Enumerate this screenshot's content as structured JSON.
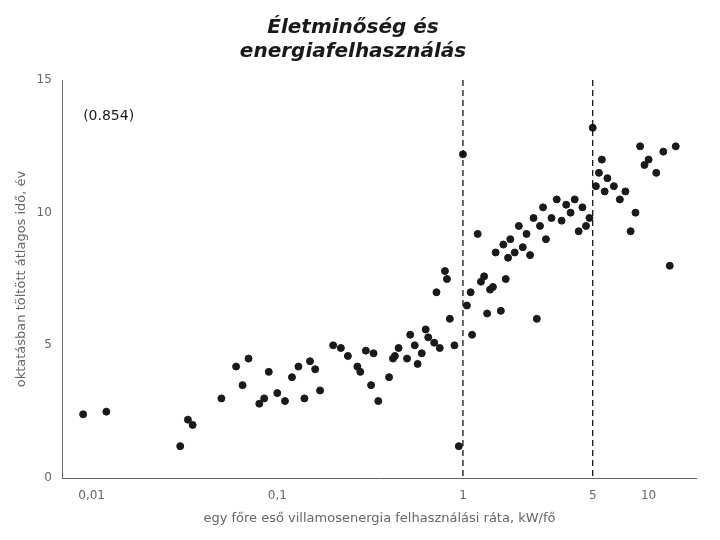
{
  "chart_data": {
    "type": "scatter",
    "title": [
      "Életminőség és",
      "energiafelhasználás"
    ],
    "x_label": "egy főre eső villamosenergia felhasználási ráta, kW/fő",
    "y_label": "oktatásban töltött átlagos idő, év",
    "log": "x",
    "grid": false,
    "color": "#1a1a1a",
    "xlim": [
      0.007,
      18
    ],
    "xticks": [
      {
        "value": 0.01,
        "label": "0,01"
      },
      {
        "value": 0.1,
        "label": "0,1"
      },
      1,
      5,
      10
    ],
    "ylim": [
      0,
      15
    ],
    "yticks": [
      0,
      5,
      10,
      15
    ],
    "vlines": [
      {
        "x": 1,
        "line_style": "dashed",
        "color": "#000000"
      },
      {
        "x": 5,
        "line_style": "dashed",
        "color": "#000000"
      }
    ],
    "annotations": [
      {
        "text": "(0.854)",
        "x": 0.009,
        "y": 13.5,
        "color": "#1a1a1a"
      }
    ],
    "x": [
      0.009,
      0.012,
      0.03,
      0.033,
      0.035,
      0.05,
      0.06,
      0.065,
      0.07,
      0.08,
      0.085,
      0.09,
      0.1,
      0.11,
      0.12,
      0.13,
      0.14,
      0.15,
      0.16,
      0.17,
      0.2,
      0.22,
      0.24,
      0.27,
      0.28,
      0.3,
      0.32,
      0.33,
      0.35,
      0.4,
      0.42,
      0.43,
      0.45,
      0.5,
      0.52,
      0.55,
      0.57,
      0.6,
      0.63,
      0.65,
      0.7,
      0.72,
      0.75,
      0.8,
      0.82,
      0.85,
      0.9,
      0.95,
      1.0,
      1.05,
      1.1,
      1.12,
      1.2,
      1.25,
      1.3,
      1.35,
      1.4,
      1.45,
      1.5,
      1.6,
      1.65,
      1.7,
      1.75,
      1.8,
      1.9,
      2.0,
      2.1,
      2.2,
      2.3,
      2.4,
      2.5,
      2.6,
      2.7,
      2.8,
      3.0,
      3.2,
      3.4,
      3.6,
      3.8,
      4.0,
      4.2,
      4.4,
      4.6,
      4.8,
      5.0,
      5.2,
      5.4,
      5.6,
      5.8,
      6.0,
      6.5,
      7.0,
      7.5,
      8.0,
      8.5,
      9.0,
      9.5,
      10.0,
      11.0,
      12.0,
      13.0,
      14.0
    ],
    "values": [
      2.4,
      2.5,
      1.2,
      2.2,
      2.0,
      3.0,
      4.2,
      3.5,
      4.5,
      2.8,
      3.0,
      4.0,
      3.2,
      2.9,
      3.8,
      4.2,
      3.0,
      4.4,
      4.1,
      3.3,
      5.0,
      4.9,
      4.6,
      4.2,
      4.0,
      4.8,
      3.5,
      4.7,
      2.9,
      3.8,
      4.5,
      4.6,
      4.9,
      4.5,
      5.4,
      5.0,
      4.3,
      4.7,
      5.6,
      5.3,
      5.1,
      7.0,
      4.9,
      7.8,
      7.5,
      6.0,
      5.0,
      1.2,
      12.2,
      6.5,
      7.0,
      5.4,
      9.2,
      7.4,
      7.6,
      6.2,
      7.1,
      7.2,
      8.5,
      6.3,
      8.8,
      7.5,
      8.3,
      9.0,
      8.5,
      9.5,
      8.7,
      9.2,
      8.4,
      9.8,
      6.0,
      9.5,
      10.2,
      9.0,
      9.8,
      10.5,
      9.7,
      10.3,
      10.0,
      10.5,
      9.3,
      10.2,
      9.5,
      9.8,
      13.2,
      11.0,
      11.5,
      12.0,
      10.8,
      11.3,
      11.0,
      10.5,
      10.8,
      9.3,
      10.0,
      12.5,
      11.8,
      12.0,
      11.5,
      12.3,
      8.0,
      12.5
    ]
  }
}
